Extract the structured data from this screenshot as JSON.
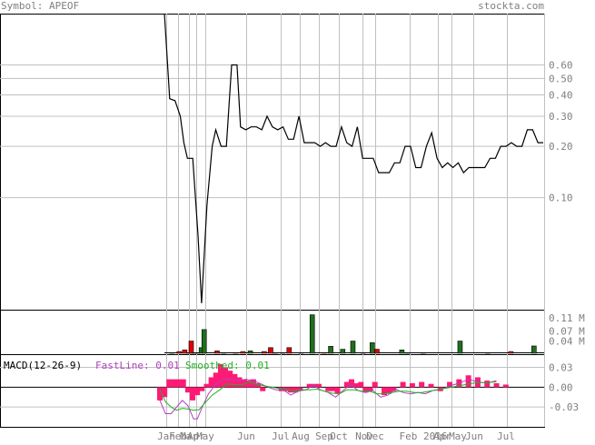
{
  "header": {
    "symbol_label": "Symbol: APEOF",
    "brand": "stockta.com"
  },
  "colors": {
    "grid": "#c0c0c0",
    "price_line": "#000000",
    "volume_up": "#1f6e1f",
    "volume_down": "#e00000",
    "macd_hist": "#ff1a75",
    "fast_line": "#b040c0",
    "smoothed_line": "#22b022",
    "label_gray": "#7f7f7f"
  },
  "chart_data": [
    {
      "type": "line",
      "panel": "price",
      "scale": "log",
      "ylim": [
        0.022,
        1.2
      ],
      "yticks": [
        "0.60",
        "0.50",
        "0.40",
        "0.30",
        "0.20",
        "0.10"
      ],
      "month_labels": [
        {
          "x": 0,
          "label": "Jan"
        },
        {
          "x": 1,
          "label": "Feb"
        },
        {
          "x": 2,
          "label": "Mar"
        },
        {
          "x": 3,
          "label": "Apr"
        },
        {
          "x": 4,
          "label": "May"
        },
        {
          "x": 5,
          "label": "Jun"
        },
        {
          "x": 6,
          "label": "Jul"
        },
        {
          "x": 7,
          "label": "Aug"
        },
        {
          "x": 8,
          "label": "Sep"
        },
        {
          "x": 9,
          "label": "Oct"
        },
        {
          "x": 10,
          "label": "Nov"
        },
        {
          "x": 11,
          "label": "Dec"
        },
        {
          "x": 12,
          "label": "Feb 2016"
        },
        {
          "x": 13,
          "label": "Apr"
        },
        {
          "x": 14,
          "label": "May"
        },
        {
          "x": 15,
          "label": "Jun"
        },
        {
          "x": 16,
          "label": "Jul"
        }
      ],
      "values": [
        [
          0,
          1.4
        ],
        [
          0.3,
          0.38
        ],
        [
          0.6,
          0.37
        ],
        [
          0.9,
          0.3
        ],
        [
          1.1,
          0.21
        ],
        [
          1.3,
          0.17
        ],
        [
          1.6,
          0.17
        ],
        [
          1.9,
          0.06
        ],
        [
          2.1,
          0.024
        ],
        [
          2.4,
          0.09
        ],
        [
          2.7,
          0.2
        ],
        [
          2.9,
          0.25
        ],
        [
          3.2,
          0.2
        ],
        [
          3.5,
          0.2
        ],
        [
          3.8,
          0.6
        ],
        [
          4.1,
          0.6
        ],
        [
          4.3,
          0.26
        ],
        [
          4.6,
          0.25
        ],
        [
          4.9,
          0.26
        ],
        [
          5.2,
          0.26
        ],
        [
          5.5,
          0.25
        ],
        [
          5.8,
          0.3
        ],
        [
          6.1,
          0.26
        ],
        [
          6.4,
          0.25
        ],
        [
          6.7,
          0.26
        ],
        [
          7.0,
          0.22
        ],
        [
          7.3,
          0.22
        ],
        [
          7.6,
          0.3
        ],
        [
          7.9,
          0.21
        ],
        [
          8.2,
          0.21
        ],
        [
          8.5,
          0.21
        ],
        [
          8.8,
          0.2
        ],
        [
          9.1,
          0.21
        ],
        [
          9.4,
          0.2
        ],
        [
          9.7,
          0.2
        ],
        [
          10.0,
          0.26
        ],
        [
          10.3,
          0.21
        ],
        [
          10.6,
          0.2
        ],
        [
          10.9,
          0.26
        ],
        [
          11.2,
          0.17
        ],
        [
          11.5,
          0.17
        ],
        [
          11.8,
          0.17
        ],
        [
          12.1,
          0.14
        ],
        [
          12.4,
          0.14
        ],
        [
          12.7,
          0.14
        ],
        [
          13.0,
          0.16
        ],
        [
          13.3,
          0.16
        ],
        [
          13.6,
          0.2
        ],
        [
          13.9,
          0.2
        ],
        [
          14.2,
          0.15
        ],
        [
          14.5,
          0.15
        ],
        [
          14.8,
          0.2
        ],
        [
          15.1,
          0.24
        ],
        [
          15.4,
          0.17
        ],
        [
          15.7,
          0.15
        ],
        [
          16.0,
          0.16
        ],
        [
          16.3,
          0.15
        ],
        [
          16.6,
          0.16
        ],
        [
          16.9,
          0.14
        ],
        [
          17.2,
          0.15
        ],
        [
          17.5,
          0.15
        ],
        [
          17.8,
          0.15
        ],
        [
          18.1,
          0.15
        ],
        [
          18.4,
          0.17
        ],
        [
          18.7,
          0.17
        ],
        [
          19.0,
          0.2
        ],
        [
          19.3,
          0.2
        ],
        [
          19.6,
          0.21
        ],
        [
          19.9,
          0.2
        ],
        [
          20.2,
          0.2
        ],
        [
          20.5,
          0.25
        ],
        [
          20.8,
          0.25
        ],
        [
          21.1,
          0.21
        ],
        [
          21.4,
          0.21
        ]
      ]
    },
    {
      "type": "bar",
      "panel": "volume",
      "ylim": [
        0,
        0.13
      ],
      "yticks": [
        "0.11 M",
        "0.07 M",
        "0.04 M"
      ],
      "up": [
        [
          2.6,
          0.003
        ],
        [
          3.6,
          0.004
        ],
        [
          4.0,
          0.02
        ],
        [
          4.3,
          0.075
        ],
        [
          6.4,
          0.003
        ],
        [
          9.3,
          0.01
        ],
        [
          12.0,
          0.004
        ],
        [
          16.0,
          0.12
        ],
        [
          18.0,
          0.024
        ],
        [
          19.3,
          0.015
        ],
        [
          20.4,
          0.04
        ],
        [
          22.5,
          0.035
        ],
        [
          25.7,
          0.013
        ],
        [
          26.3,
          0.003
        ],
        [
          32.0,
          0.04
        ],
        [
          40.0,
          0.025
        ]
      ],
      "down": [
        [
          0.8,
          0.003
        ],
        [
          1.6,
          0.008
        ],
        [
          2.2,
          0.013
        ],
        [
          2.9,
          0.04
        ],
        [
          3.2,
          0.004
        ],
        [
          5.7,
          0.01
        ],
        [
          7.7,
          0.005
        ],
        [
          8.5,
          0.008
        ],
        [
          10.8,
          0.008
        ],
        [
          11.5,
          0.02
        ],
        [
          12.8,
          0.004
        ],
        [
          13.5,
          0.02
        ],
        [
          14.8,
          0.003
        ],
        [
          17.3,
          0.005
        ],
        [
          21.5,
          0.003
        ],
        [
          23.0,
          0.015
        ],
        [
          28.0,
          0.004
        ],
        [
          35.0,
          0.003
        ],
        [
          37.5,
          0.008
        ]
      ],
      "x_range": [
        0,
        41
      ]
    },
    {
      "type": "line",
      "panel": "macd",
      "title": "MACD(12-26-9)",
      "series_labels": [
        {
          "name": "FastLine: 0.01",
          "color": "#b040c0"
        },
        {
          "name": "Smoothed: 0.01",
          "color": "#22b022"
        }
      ],
      "ylim": [
        -0.06,
        0.05
      ],
      "yticks": [
        "0.03",
        "0.00",
        "-0.03"
      ],
      "x_range": [
        0,
        41
      ],
      "histogram": [
        [
          0,
          -0.02
        ],
        [
          0.5,
          -0.015
        ],
        [
          1.0,
          0.012
        ],
        [
          1.5,
          0.012
        ],
        [
          2.0,
          0.012
        ],
        [
          2.5,
          0.012
        ],
        [
          3.0,
          -0.008
        ],
        [
          3.5,
          -0.02
        ],
        [
          4.0,
          -0.012
        ],
        [
          4.5,
          -0.006
        ],
        [
          5.0,
          0.005
        ],
        [
          5.5,
          0.015
        ],
        [
          6.0,
          0.022
        ],
        [
          6.5,
          0.035
        ],
        [
          7.0,
          0.03
        ],
        [
          7.5,
          0.025
        ],
        [
          8.0,
          0.02
        ],
        [
          8.5,
          0.015
        ],
        [
          9.0,
          0.012
        ],
        [
          9.5,
          0.01
        ],
        [
          10.0,
          0.012
        ],
        [
          10.5,
          0.006
        ],
        [
          11.0,
          -0.006
        ],
        [
          13.0,
          -0.006
        ],
        [
          13.5,
          -0.006
        ],
        [
          14.0,
          -0.008
        ],
        [
          14.5,
          -0.008
        ],
        [
          15.0,
          -0.005
        ],
        [
          16.0,
          0.005
        ],
        [
          16.5,
          0.005
        ],
        [
          17.0,
          0.005
        ],
        [
          18.0,
          -0.006
        ],
        [
          18.5,
          -0.006
        ],
        [
          19.0,
          -0.01
        ],
        [
          20.0,
          0.008
        ],
        [
          20.5,
          0.012
        ],
        [
          21.0,
          0.006
        ],
        [
          21.5,
          0.008
        ],
        [
          22.0,
          -0.008
        ],
        [
          22.5,
          -0.006
        ],
        [
          23.0,
          0.008
        ],
        [
          24.0,
          -0.012
        ],
        [
          24.5,
          -0.01
        ],
        [
          25.0,
          -0.006
        ],
        [
          26.0,
          0.008
        ],
        [
          27.0,
          0.006
        ],
        [
          28.0,
          0.008
        ],
        [
          29.0,
          0.005
        ],
        [
          30.0,
          -0.006
        ],
        [
          31.0,
          0.008
        ],
        [
          32.0,
          0.012
        ],
        [
          33.0,
          0.018
        ],
        [
          34.0,
          0.015
        ],
        [
          35.0,
          0.01
        ],
        [
          36.0,
          0.006
        ],
        [
          37.0,
          0.004
        ]
      ],
      "fast": [
        [
          0,
          -0.02
        ],
        [
          0.6,
          -0.04
        ],
        [
          1.2,
          -0.04
        ],
        [
          1.8,
          -0.03
        ],
        [
          2.4,
          -0.02
        ],
        [
          3.0,
          -0.028
        ],
        [
          3.6,
          -0.048
        ],
        [
          4.0,
          -0.048
        ],
        [
          4.6,
          -0.028
        ],
        [
          5.2,
          -0.01
        ],
        [
          6.0,
          0.005
        ],
        [
          6.8,
          0.012
        ],
        [
          7.6,
          0.012
        ],
        [
          8.4,
          0.01
        ],
        [
          9.2,
          0.012
        ],
        [
          10.0,
          0.01
        ],
        [
          10.8,
          0.005
        ],
        [
          11.6,
          0.0
        ],
        [
          12.4,
          -0.004
        ],
        [
          13.2,
          -0.004
        ],
        [
          14.0,
          -0.012
        ],
        [
          14.8,
          -0.006
        ],
        [
          15.6,
          -0.004
        ],
        [
          16.4,
          0.003
        ],
        [
          17.2,
          -0.004
        ],
        [
          18.0,
          -0.008
        ],
        [
          18.8,
          -0.015
        ],
        [
          19.6,
          -0.005
        ],
        [
          20.4,
          0.004
        ],
        [
          21.2,
          -0.005
        ],
        [
          22.0,
          -0.008
        ],
        [
          22.8,
          -0.005
        ],
        [
          23.6,
          -0.015
        ],
        [
          24.4,
          -0.012
        ],
        [
          25.2,
          -0.003
        ],
        [
          26.0,
          -0.008
        ],
        [
          26.8,
          -0.01
        ],
        [
          27.6,
          -0.008
        ],
        [
          28.4,
          -0.01
        ],
        [
          29.2,
          -0.005
        ],
        [
          30.0,
          -0.004
        ],
        [
          31.0,
          0.002
        ],
        [
          32.0,
          0.006
        ],
        [
          33.0,
          0.012
        ],
        [
          34.0,
          0.008
        ],
        [
          35.0,
          0.006
        ],
        [
          36.0,
          0.01
        ]
      ],
      "smoothed": [
        [
          0,
          -0.004
        ],
        [
          0.6,
          -0.022
        ],
        [
          1.2,
          -0.03
        ],
        [
          1.8,
          -0.035
        ],
        [
          2.4,
          -0.032
        ],
        [
          3.0,
          -0.033
        ],
        [
          3.6,
          -0.035
        ],
        [
          4.2,
          -0.034
        ],
        [
          4.8,
          -0.024
        ],
        [
          5.6,
          -0.012
        ],
        [
          6.4,
          -0.004
        ],
        [
          7.2,
          0.005
        ],
        [
          8.0,
          0.004
        ],
        [
          8.8,
          0.004
        ],
        [
          9.6,
          0.008
        ],
        [
          10.4,
          0.004
        ],
        [
          11.2,
          0.002
        ],
        [
          12.0,
          0.0
        ],
        [
          12.8,
          -0.002
        ],
        [
          13.6,
          -0.004
        ],
        [
          14.4,
          -0.006
        ],
        [
          15.2,
          -0.004
        ],
        [
          16.0,
          -0.004
        ],
        [
          16.8,
          -0.003
        ],
        [
          17.6,
          -0.006
        ],
        [
          18.4,
          -0.009
        ],
        [
          19.2,
          -0.01
        ],
        [
          20.0,
          -0.004
        ],
        [
          20.8,
          -0.004
        ],
        [
          21.6,
          -0.006
        ],
        [
          22.4,
          -0.006
        ],
        [
          23.2,
          -0.01
        ],
        [
          24.0,
          -0.01
        ],
        [
          24.8,
          -0.008
        ],
        [
          25.6,
          -0.006
        ],
        [
          26.4,
          -0.006
        ],
        [
          27.2,
          -0.008
        ],
        [
          28.0,
          -0.008
        ],
        [
          28.8,
          -0.006
        ],
        [
          29.6,
          -0.004
        ],
        [
          30.4,
          -0.002
        ],
        [
          31.2,
          0.0
        ],
        [
          32.0,
          0.002
        ],
        [
          33.0,
          0.005
        ],
        [
          34.0,
          0.007
        ],
        [
          35.0,
          0.007
        ],
        [
          36.0,
          0.008
        ]
      ]
    }
  ]
}
